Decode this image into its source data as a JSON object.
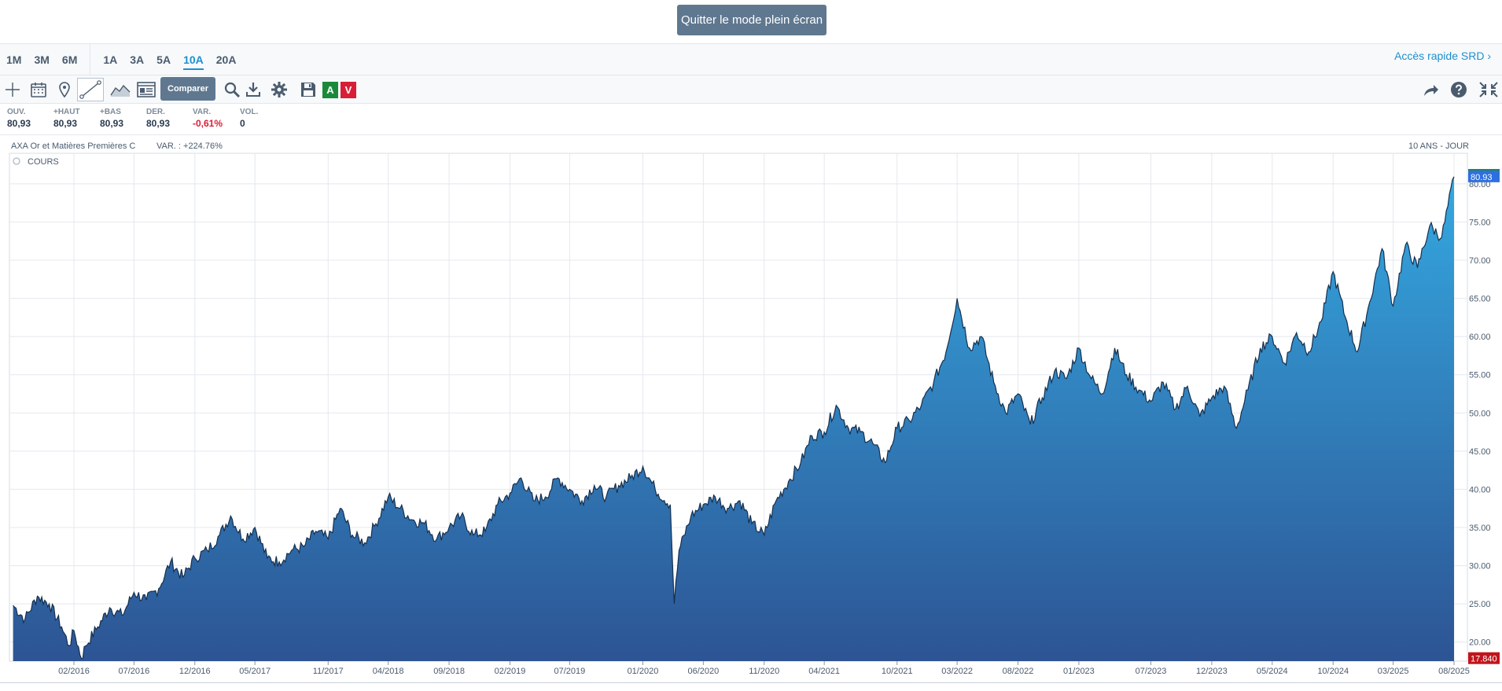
{
  "header": {
    "exit_fullscreen": "Quitter le mode plein écran"
  },
  "periods": [
    "1M",
    "3M",
    "6M",
    "1A",
    "3A",
    "5A",
    "10A",
    "20A"
  ],
  "active_period": "10A",
  "quick_access": "Accès rapide SRD ›",
  "toolbar": {
    "compare": "Comparer",
    "buy": "A",
    "sell": "V",
    "icons": [
      "crosshair-icon",
      "calendar-icon",
      "pin-icon",
      "trendline-icon",
      "area-chart-icon",
      "news-icon",
      "search-icon",
      "download-icon",
      "gear-icon",
      "save-icon",
      "share-icon",
      "help-icon",
      "fullscreen-exit-icon"
    ]
  },
  "quote": {
    "open_label": "OUV.",
    "open": "80,93",
    "high_label": "+HAUT",
    "high": "80,93",
    "low_label": "+BAS",
    "low": "80,93",
    "last_label": "DER.",
    "last": "80,93",
    "var_label": "VAR.",
    "var": "-0,61%",
    "vol_label": "VOL.",
    "vol": "0"
  },
  "chart_header": {
    "name": "AXA Or et Matières Premières C",
    "variation": "VAR. : +224.76%",
    "period": "10 ANS - JOUR",
    "legend": "COURS"
  },
  "colors": {
    "accent": "#1f8fcf",
    "area_top": "#34a8e0",
    "area_bottom": "#2d5494",
    "line": "#15304f",
    "high_tag": "#1a8a3a",
    "low_tag": "#c0141c",
    "last_tag": "#2e6fe0"
  },
  "chart_data": {
    "type": "area",
    "title": "",
    "xlabel": "",
    "ylabel": "",
    "ylim": [
      17.5,
      84
    ],
    "y_ticks": [
      "20.00",
      "25.00",
      "30.00",
      "35.00",
      "40.00",
      "45.00",
      "50.00",
      "55.00",
      "60.00",
      "65.00",
      "70.00",
      "75.00",
      "80.00"
    ],
    "x_ticks": [
      "02/2016",
      "07/2016",
      "12/2016",
      "05/2017",
      "11/2017",
      "04/2018",
      "09/2018",
      "02/2019",
      "07/2019",
      "01/2020",
      "06/2020",
      "11/2020",
      "04/2021",
      "10/2021",
      "03/2022",
      "08/2022",
      "01/2023",
      "07/2023",
      "12/2023",
      "05/2024",
      "10/2024",
      "03/2025",
      "08/2025"
    ],
    "last_value": "80.93",
    "high_value": "81.12",
    "low_value": "17.840",
    "series": [
      {
        "values": [
          [
            "2015-09",
            24.8
          ],
          [
            "2015-10",
            23.0
          ],
          [
            "2015-11",
            26.0
          ],
          [
            "2015-12",
            25.0
          ],
          [
            "2016-01",
            22.0
          ],
          [
            "2016-01-20",
            19.5
          ],
          [
            "2016-02",
            21.5
          ],
          [
            "2016-02-20",
            17.84
          ],
          [
            "2016-03",
            19.5
          ],
          [
            "2016-04",
            22.0
          ],
          [
            "2016-05",
            24.5
          ],
          [
            "2016-06",
            23.5
          ],
          [
            "2016-07",
            26.5
          ],
          [
            "2016-08",
            25.5
          ],
          [
            "2016-09",
            27.0
          ],
          [
            "2016-10",
            30.5
          ],
          [
            "2016-11",
            28.5
          ],
          [
            "2016-12",
            31.0
          ],
          [
            "2017-01",
            32.0
          ],
          [
            "2017-02",
            34.0
          ],
          [
            "2017-03",
            36.5
          ],
          [
            "2017-04",
            33.5
          ],
          [
            "2017-05",
            35.0
          ],
          [
            "2017-06",
            31.0
          ],
          [
            "2017-07",
            30.5
          ],
          [
            "2017-08",
            32.0
          ],
          [
            "2017-09",
            32.5
          ],
          [
            "2017-10",
            34.5
          ],
          [
            "2017-11",
            33.5
          ],
          [
            "2017-12",
            37.5
          ],
          [
            "2018-01",
            34.0
          ],
          [
            "2018-02",
            33.0
          ],
          [
            "2018-03",
            35.5
          ],
          [
            "2018-04",
            39.0
          ],
          [
            "2018-05",
            37.5
          ],
          [
            "2018-06",
            36.0
          ],
          [
            "2018-07",
            35.5
          ],
          [
            "2018-08",
            33.5
          ],
          [
            "2018-09",
            35.0
          ],
          [
            "2018-10",
            36.5
          ],
          [
            "2018-11",
            34.0
          ],
          [
            "2018-12",
            34.5
          ],
          [
            "2019-01",
            38.0
          ],
          [
            "2019-02",
            39.5
          ],
          [
            "2019-03",
            41.5
          ],
          [
            "2019-04",
            38.5
          ],
          [
            "2019-05",
            39.0
          ],
          [
            "2019-06",
            41.5
          ],
          [
            "2019-07",
            40.0
          ],
          [
            "2019-08",
            38.5
          ],
          [
            "2019-09",
            40.5
          ],
          [
            "2019-10",
            39.0
          ],
          [
            "2019-11",
            40.5
          ],
          [
            "2019-12",
            41.5
          ],
          [
            "2020-01",
            43.0
          ],
          [
            "2020-02",
            40.0
          ],
          [
            "2020-03-10",
            38.0
          ],
          [
            "2020-03-20",
            25.0
          ],
          [
            "2020-04",
            32.0
          ],
          [
            "2020-05",
            36.5
          ],
          [
            "2020-06",
            38.0
          ],
          [
            "2020-07",
            39.0
          ],
          [
            "2020-08",
            37.5
          ],
          [
            "2020-09",
            38.5
          ],
          [
            "2020-10",
            35.5
          ],
          [
            "2020-11",
            34.0
          ],
          [
            "2020-12",
            38.5
          ],
          [
            "2021-01",
            41.0
          ],
          [
            "2021-02",
            43.5
          ],
          [
            "2021-03",
            47.0
          ],
          [
            "2021-04",
            47.5
          ],
          [
            "2021-05",
            51.0
          ],
          [
            "2021-06",
            48.0
          ],
          [
            "2021-07",
            47.5
          ],
          [
            "2021-08",
            46.0
          ],
          [
            "2021-09",
            43.5
          ],
          [
            "2021-10",
            48.0
          ],
          [
            "2021-11",
            49.0
          ],
          [
            "2021-12",
            51.0
          ],
          [
            "2022-01",
            54.0
          ],
          [
            "2022-02",
            58.0
          ],
          [
            "2022-03",
            65.0
          ],
          [
            "2022-04",
            58.5
          ],
          [
            "2022-05",
            60.0
          ],
          [
            "2022-06",
            54.0
          ],
          [
            "2022-07",
            50.0
          ],
          [
            "2022-08",
            52.5
          ],
          [
            "2022-09",
            48.5
          ],
          [
            "2022-10",
            52.0
          ],
          [
            "2022-11",
            55.5
          ],
          [
            "2022-12",
            54.5
          ],
          [
            "2023-01",
            58.5
          ],
          [
            "2023-02",
            54.5
          ],
          [
            "2023-03",
            52.5
          ],
          [
            "2023-04",
            58.5
          ],
          [
            "2023-05",
            55.0
          ],
          [
            "2023-06",
            53.0
          ],
          [
            "2023-07",
            51.5
          ],
          [
            "2023-08",
            54.0
          ],
          [
            "2023-09",
            50.5
          ],
          [
            "2023-10",
            53.5
          ],
          [
            "2023-11",
            49.5
          ],
          [
            "2023-12",
            52.0
          ],
          [
            "2024-01",
            53.5
          ],
          [
            "2024-02",
            48.0
          ],
          [
            "2024-03",
            53.0
          ],
          [
            "2024-04",
            58.5
          ],
          [
            "2024-05",
            60.0
          ],
          [
            "2024-06",
            56.5
          ],
          [
            "2024-07",
            60.5
          ],
          [
            "2024-08",
            58.0
          ],
          [
            "2024-09",
            62.0
          ],
          [
            "2024-10",
            68.5
          ],
          [
            "2024-11",
            62.5
          ],
          [
            "2024-12",
            58.0
          ],
          [
            "2025-01",
            64.5
          ],
          [
            "2025-02",
            71.5
          ],
          [
            "2025-03",
            64.0
          ],
          [
            "2025-04",
            72.0
          ],
          [
            "2025-05",
            69.0
          ],
          [
            "2025-06",
            74.5
          ],
          [
            "2025-07",
            73.0
          ],
          [
            "2025-08",
            80.93
          ]
        ]
      }
    ]
  }
}
